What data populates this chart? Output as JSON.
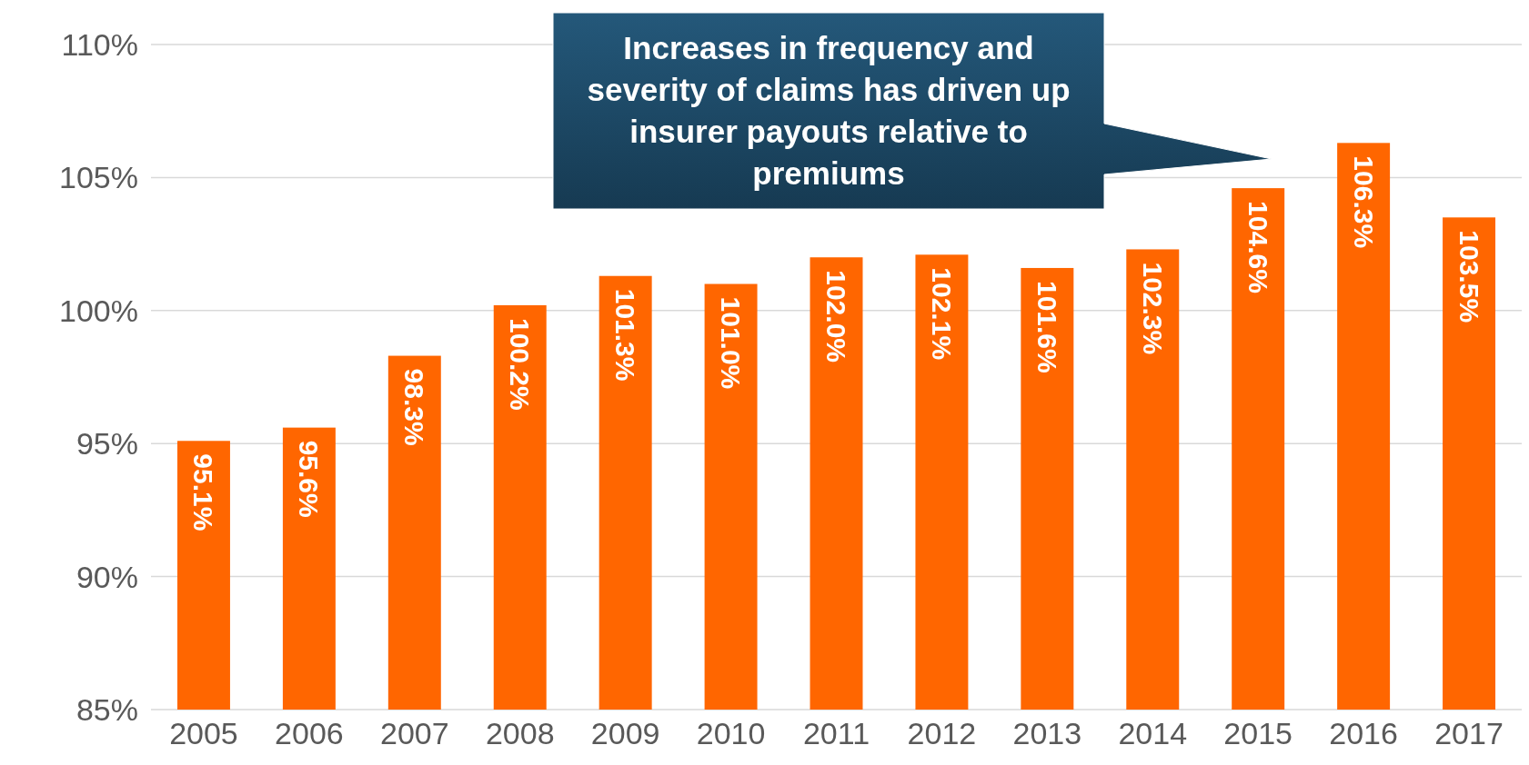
{
  "chart_data": {
    "type": "bar",
    "categories": [
      "2005",
      "2006",
      "2007",
      "2008",
      "2009",
      "2010",
      "2011",
      "2012",
      "2013",
      "2014",
      "2015",
      "2016",
      "2017"
    ],
    "values": [
      95.1,
      95.6,
      98.3,
      100.2,
      101.3,
      101.0,
      102.0,
      102.1,
      101.6,
      102.3,
      104.6,
      106.3,
      103.5
    ],
    "value_labels": [
      "95.1%",
      "95.6%",
      "98.3%",
      "100.2%",
      "101.3%",
      "101.0%",
      "102.0%",
      "102.1%",
      "101.6%",
      "102.3%",
      "104.6%",
      "106.3%",
      "103.5%"
    ],
    "color": "#ff6600",
    "ylim": [
      85,
      110
    ],
    "yticks": [
      {
        "value": 85,
        "label": "85%"
      },
      {
        "value": 90,
        "label": "90%"
      },
      {
        "value": 95,
        "label": "95%"
      },
      {
        "value": 100,
        "label": "100%"
      },
      {
        "value": 105,
        "label": "105%"
      },
      {
        "value": 110,
        "label": "110%"
      }
    ],
    "grid": "y",
    "annotations": [
      "Increases in frequency and severity of claims has driven up insurer payouts relative to premiums"
    ]
  }
}
